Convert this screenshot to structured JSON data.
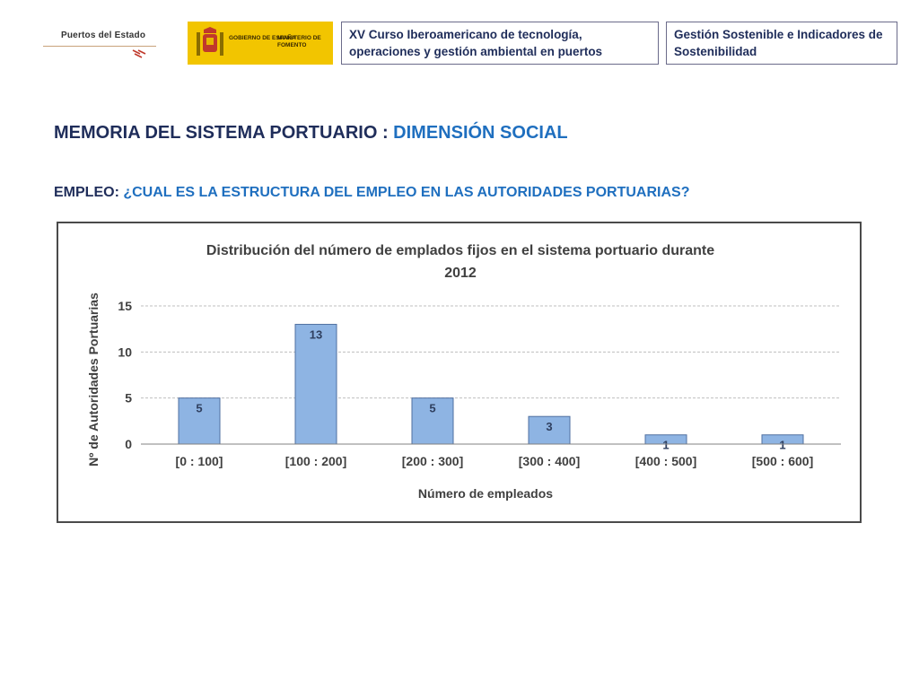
{
  "header": {
    "logo_puertos_text": "Puertos del Estado",
    "logo_gobierno_text": "GOBIERNO DE ESPAÑA",
    "logo_ministerio_text": "MINISTERIO DE FOMENTO",
    "course_title": "XV Curso Iberoamericano de tecnología, operaciones y gestión ambiental en puertos",
    "topic_title": "Gestión Sostenible e Indicadores de Sostenibilidad"
  },
  "main": {
    "title_prefix": "MEMORIA DEL SISTEMA PORTUARIO : ",
    "title_accent": "DIMENSIÓN SOCIAL",
    "question_prefix": "EMPLEO: ",
    "question_accent": "¿CUAL ES LA ESTRUCTURA DEL EMPLEO EN LAS AUTORIDADES PORTUARIAS?"
  },
  "colors": {
    "bar_fill": "#8eb4e3",
    "bar_stroke": "#4f6fa0",
    "title_dark": "#1f2d5a",
    "accent_blue": "#1f6fbf",
    "grid": "#bfbfbf"
  },
  "chart_data": {
    "type": "bar",
    "title_line1": "Distribución del número de emplados fijos en el sistema portuario durante",
    "title_line2": "2012",
    "xlabel": "Número de empleados",
    "ylabel": "Nº de Autoridades Portuarias",
    "categories": [
      "[0 : 100]",
      "[100 : 200]",
      "[200 : 300]",
      "[300 : 400]",
      "[400 : 500]",
      "[500 : 600]"
    ],
    "values": [
      5,
      13,
      5,
      3,
      1,
      1
    ],
    "data_labels": [
      "5",
      "13",
      "5",
      "3",
      "1",
      "1"
    ],
    "yticks": [
      0,
      5,
      10,
      15
    ],
    "ylim": [
      0,
      15
    ],
    "grid": true,
    "legend": "none"
  }
}
